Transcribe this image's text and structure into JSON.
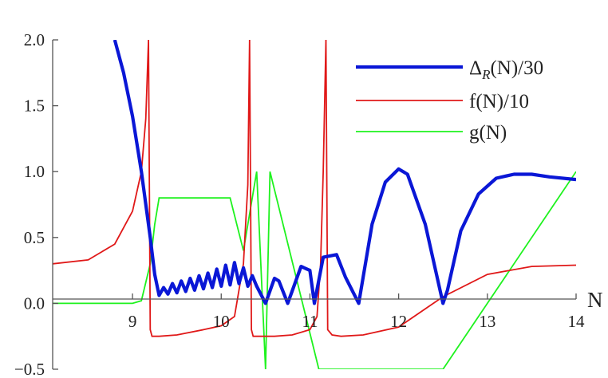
{
  "chart_data": {
    "type": "line",
    "title": "",
    "xlabel": "N",
    "ylabel": "",
    "xlim": [
      8.1,
      14
    ],
    "ylim": [
      -0.5,
      2.0
    ],
    "x_ticks": [
      "9",
      "10",
      "11",
      "12",
      "13",
      "14"
    ],
    "y_ticks": [
      "−0.5",
      "0.0",
      "0.5",
      "1.0",
      "1.5",
      "2.0"
    ],
    "grid": false,
    "legend_position": "top-right",
    "legend": [
      {
        "label_main": "Δ",
        "label_sub": "R",
        "label_rest": "(N)/30"
      },
      {
        "label_main": "f(N)/10"
      },
      {
        "label_main": "g(N)"
      }
    ],
    "colors": {
      "delta": "#0a17d6",
      "f": "#e01818",
      "g": "#1ef21e",
      "axis": "#555555"
    },
    "series": [
      {
        "name": "ΔR(N)/30",
        "x": [
          8.8,
          8.9,
          9.0,
          9.1,
          9.2,
          9.25,
          9.3,
          9.35,
          9.4,
          9.45,
          9.5,
          9.55,
          9.6,
          9.65,
          9.7,
          9.75,
          9.8,
          9.85,
          9.9,
          9.95,
          10.0,
          10.05,
          10.1,
          10.15,
          10.2,
          10.25,
          10.3,
          10.35,
          10.4,
          10.5,
          10.6,
          10.65,
          10.75,
          10.9,
          11.0,
          11.05,
          11.15,
          11.3,
          11.4,
          11.55,
          11.7,
          11.85,
          12.0,
          12.1,
          12.3,
          12.5,
          12.55,
          12.7,
          12.9,
          13.1,
          13.3,
          13.5,
          13.7,
          14.0
        ],
        "y": [
          2.0,
          1.75,
          1.42,
          1.0,
          0.5,
          0.22,
          0.06,
          0.12,
          0.07,
          0.15,
          0.08,
          0.17,
          0.09,
          0.19,
          0.1,
          0.21,
          0.11,
          0.23,
          0.12,
          0.26,
          0.13,
          0.29,
          0.14,
          0.31,
          0.15,
          0.27,
          0.13,
          0.21,
          0.13,
          0.0,
          0.19,
          0.17,
          0.0,
          0.28,
          0.25,
          0.0,
          0.35,
          0.37,
          0.2,
          0.0,
          0.6,
          0.92,
          1.02,
          0.98,
          0.6,
          0.0,
          0.1,
          0.55,
          0.83,
          0.95,
          0.98,
          0.98,
          0.96,
          0.94
        ]
      },
      {
        "name": "f(N)/10",
        "x": [
          8.1,
          8.5,
          8.8,
          9.0,
          9.1,
          9.15,
          9.18,
          9.2,
          9.22,
          9.24,
          9.3,
          9.5,
          9.8,
          10.0,
          10.15,
          10.25,
          10.3,
          10.32,
          10.34,
          10.36,
          10.4,
          10.6,
          10.8,
          11.0,
          11.08,
          11.12,
          11.15,
          11.18,
          11.2,
          11.25,
          11.35,
          11.6,
          12.0,
          12.5,
          13.0,
          13.5,
          14.0
        ],
        "y": [
          0.3,
          0.33,
          0.45,
          0.7,
          1.0,
          1.4,
          2.0,
          -0.2,
          -0.25,
          -0.25,
          -0.25,
          -0.24,
          -0.2,
          -0.17,
          -0.1,
          0.3,
          0.9,
          2.0,
          -0.2,
          -0.25,
          -0.25,
          -0.25,
          -0.24,
          -0.2,
          -0.1,
          0.3,
          1.0,
          2.0,
          -0.2,
          -0.24,
          -0.25,
          -0.24,
          -0.18,
          0.05,
          0.22,
          0.28,
          0.29
        ]
      },
      {
        "name": "g(N)",
        "x": [
          8.1,
          9.0,
          9.1,
          9.2,
          9.25,
          9.3,
          10.1,
          10.25,
          10.4,
          10.5,
          10.55,
          11.1,
          11.55,
          12.5,
          14.0
        ],
        "y": [
          0.0,
          0.0,
          0.02,
          0.3,
          0.6,
          0.8,
          0.8,
          0.4,
          1.0,
          -0.5,
          1.0,
          -0.5,
          -0.5,
          -0.5,
          1.0
        ]
      }
    ]
  }
}
